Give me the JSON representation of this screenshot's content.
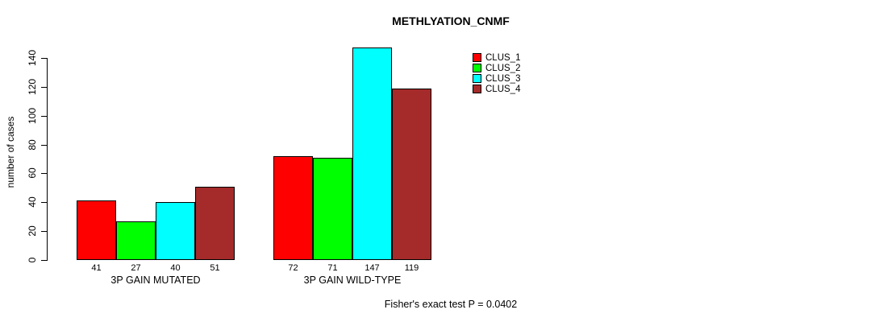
{
  "chart_data": {
    "type": "bar",
    "title": "METHLYATION_CNMF",
    "ylabel": "number of cases",
    "xlabel": "",
    "categories": [
      "3P GAIN MUTATED",
      "3P GAIN WILD-TYPE"
    ],
    "series": [
      {
        "name": "CLUS_1",
        "color": "#FF0000",
        "values": [
          41,
          72
        ]
      },
      {
        "name": "CLUS_2",
        "color": "#00FF00",
        "values": [
          27,
          71
        ]
      },
      {
        "name": "CLUS_3",
        "color": "#00FFFF",
        "values": [
          40,
          147
        ]
      },
      {
        "name": "CLUS_4",
        "color": "#A52A2A",
        "values": [
          51,
          119
        ]
      }
    ],
    "yticks": [
      0,
      20,
      40,
      60,
      80,
      100,
      120,
      140
    ],
    "ylim": [
      0,
      147
    ],
    "grid": false,
    "bar_value_labels": true,
    "legend_position": "top-right",
    "axis_color": "#000000",
    "bar_border_color": "#000000",
    "footnote": "Fisher's exact test P = 0.0402"
  }
}
